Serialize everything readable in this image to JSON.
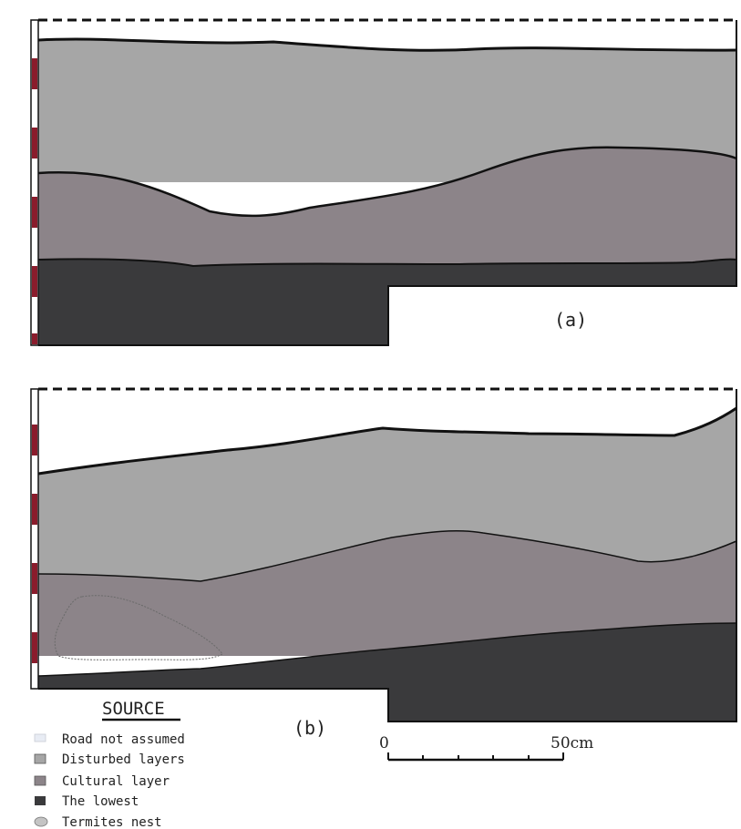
{
  "panels": [
    {
      "id": "a",
      "label": "(a)"
    },
    {
      "id": "b",
      "label": "(b)"
    }
  ],
  "legend": {
    "title": "SOURCE",
    "items": [
      {
        "label": "Road not assumed",
        "swatch": "#e8ecf4"
      },
      {
        "label": "Disturbed layers",
        "swatch": "#a6a6a6"
      },
      {
        "label": "Cultural layer",
        "swatch": "#8c8489"
      },
      {
        "label": "The lowest",
        "swatch": "#3a3a3c"
      },
      {
        "label": "Termites nest",
        "swatch": "#c4c4c4"
      }
    ]
  },
  "scale": {
    "start_label": "0",
    "end_label": "50cm"
  },
  "colors": {
    "disturbed": "#a6a6a6",
    "cultural": "#8c8489",
    "lowest": "#3a3a3c",
    "marker_red": "#8a1c2c"
  }
}
